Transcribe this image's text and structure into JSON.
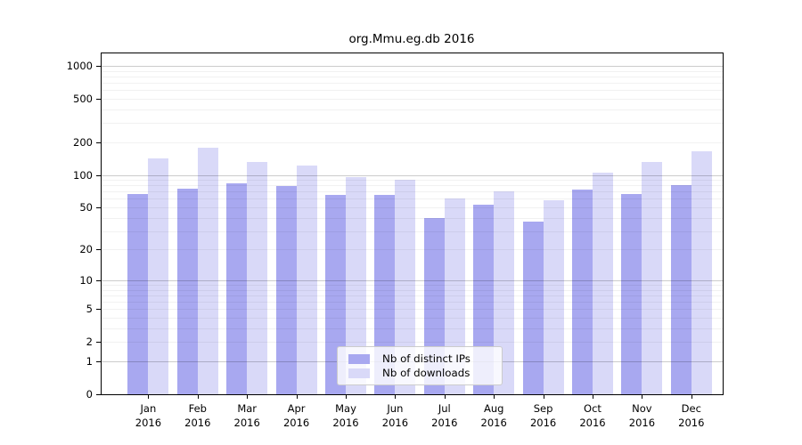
{
  "chart_data": {
    "type": "bar",
    "title": "org.Mmu.eg.db 2016",
    "categories": [
      "Jan 2016",
      "Feb 2016",
      "Mar 2016",
      "Apr 2016",
      "May 2016",
      "Jun 2016",
      "Jul 2016",
      "Aug 2016",
      "Sep 2016",
      "Oct 2016",
      "Nov 2016",
      "Dec 2016"
    ],
    "month_labels": [
      "Jan",
      "Feb",
      "Mar",
      "Apr",
      "May",
      "Jun",
      "Jul",
      "Aug",
      "Sep",
      "Oct",
      "Nov",
      "Dec"
    ],
    "year_label": "2016",
    "series": [
      {
        "name": "Nb of distinct IPs",
        "color": "#a8a8f0",
        "values": [
          67,
          74,
          83,
          79,
          65,
          65,
          40,
          53,
          37,
          73,
          66,
          81
        ]
      },
      {
        "name": "Nb of downloads",
        "color": "#d9d9f8",
        "values": [
          143,
          178,
          131,
          123,
          96,
          91,
          60,
          71,
          58,
          104,
          131,
          164
        ]
      }
    ],
    "xlabel": "",
    "ylabel": "",
    "y_scale": "log10(1+value)",
    "y_ticks": [
      0,
      1,
      2,
      5,
      10,
      20,
      50,
      100,
      200,
      500,
      1000
    ],
    "y_major_gridlines": [
      1,
      10,
      100,
      1000
    ],
    "y_minor_gridlines": [
      2,
      3,
      4,
      5,
      6,
      7,
      8,
      9,
      20,
      30,
      40,
      50,
      60,
      70,
      80,
      90,
      200,
      300,
      400,
      500,
      600,
      700,
      800,
      900
    ],
    "ylim": [
      0,
      1290
    ],
    "grid": true,
    "legend_position": "bottom-center"
  }
}
